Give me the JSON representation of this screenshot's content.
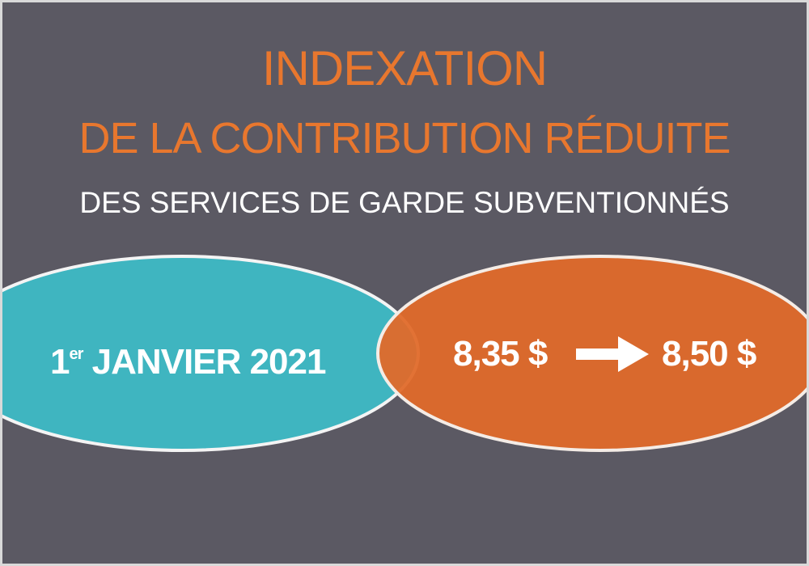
{
  "title": {
    "line1": "INDEXATION",
    "line2": "DE LA CONTRIBUTION RÉDUITE",
    "line3": "DES SERVICES DE GARDE SUBVENTIONNÉS"
  },
  "date": {
    "day": "1",
    "suffix": "er",
    "rest": "JANVIER 2021"
  },
  "price": {
    "from": "8,35 $",
    "to": "8,50 $",
    "arrow_icon": "arrow-right"
  },
  "colors": {
    "background": "#5b5963",
    "orange": "#e06a2a",
    "teal": "#3fb5c0",
    "title_orange": "#e8772e"
  }
}
